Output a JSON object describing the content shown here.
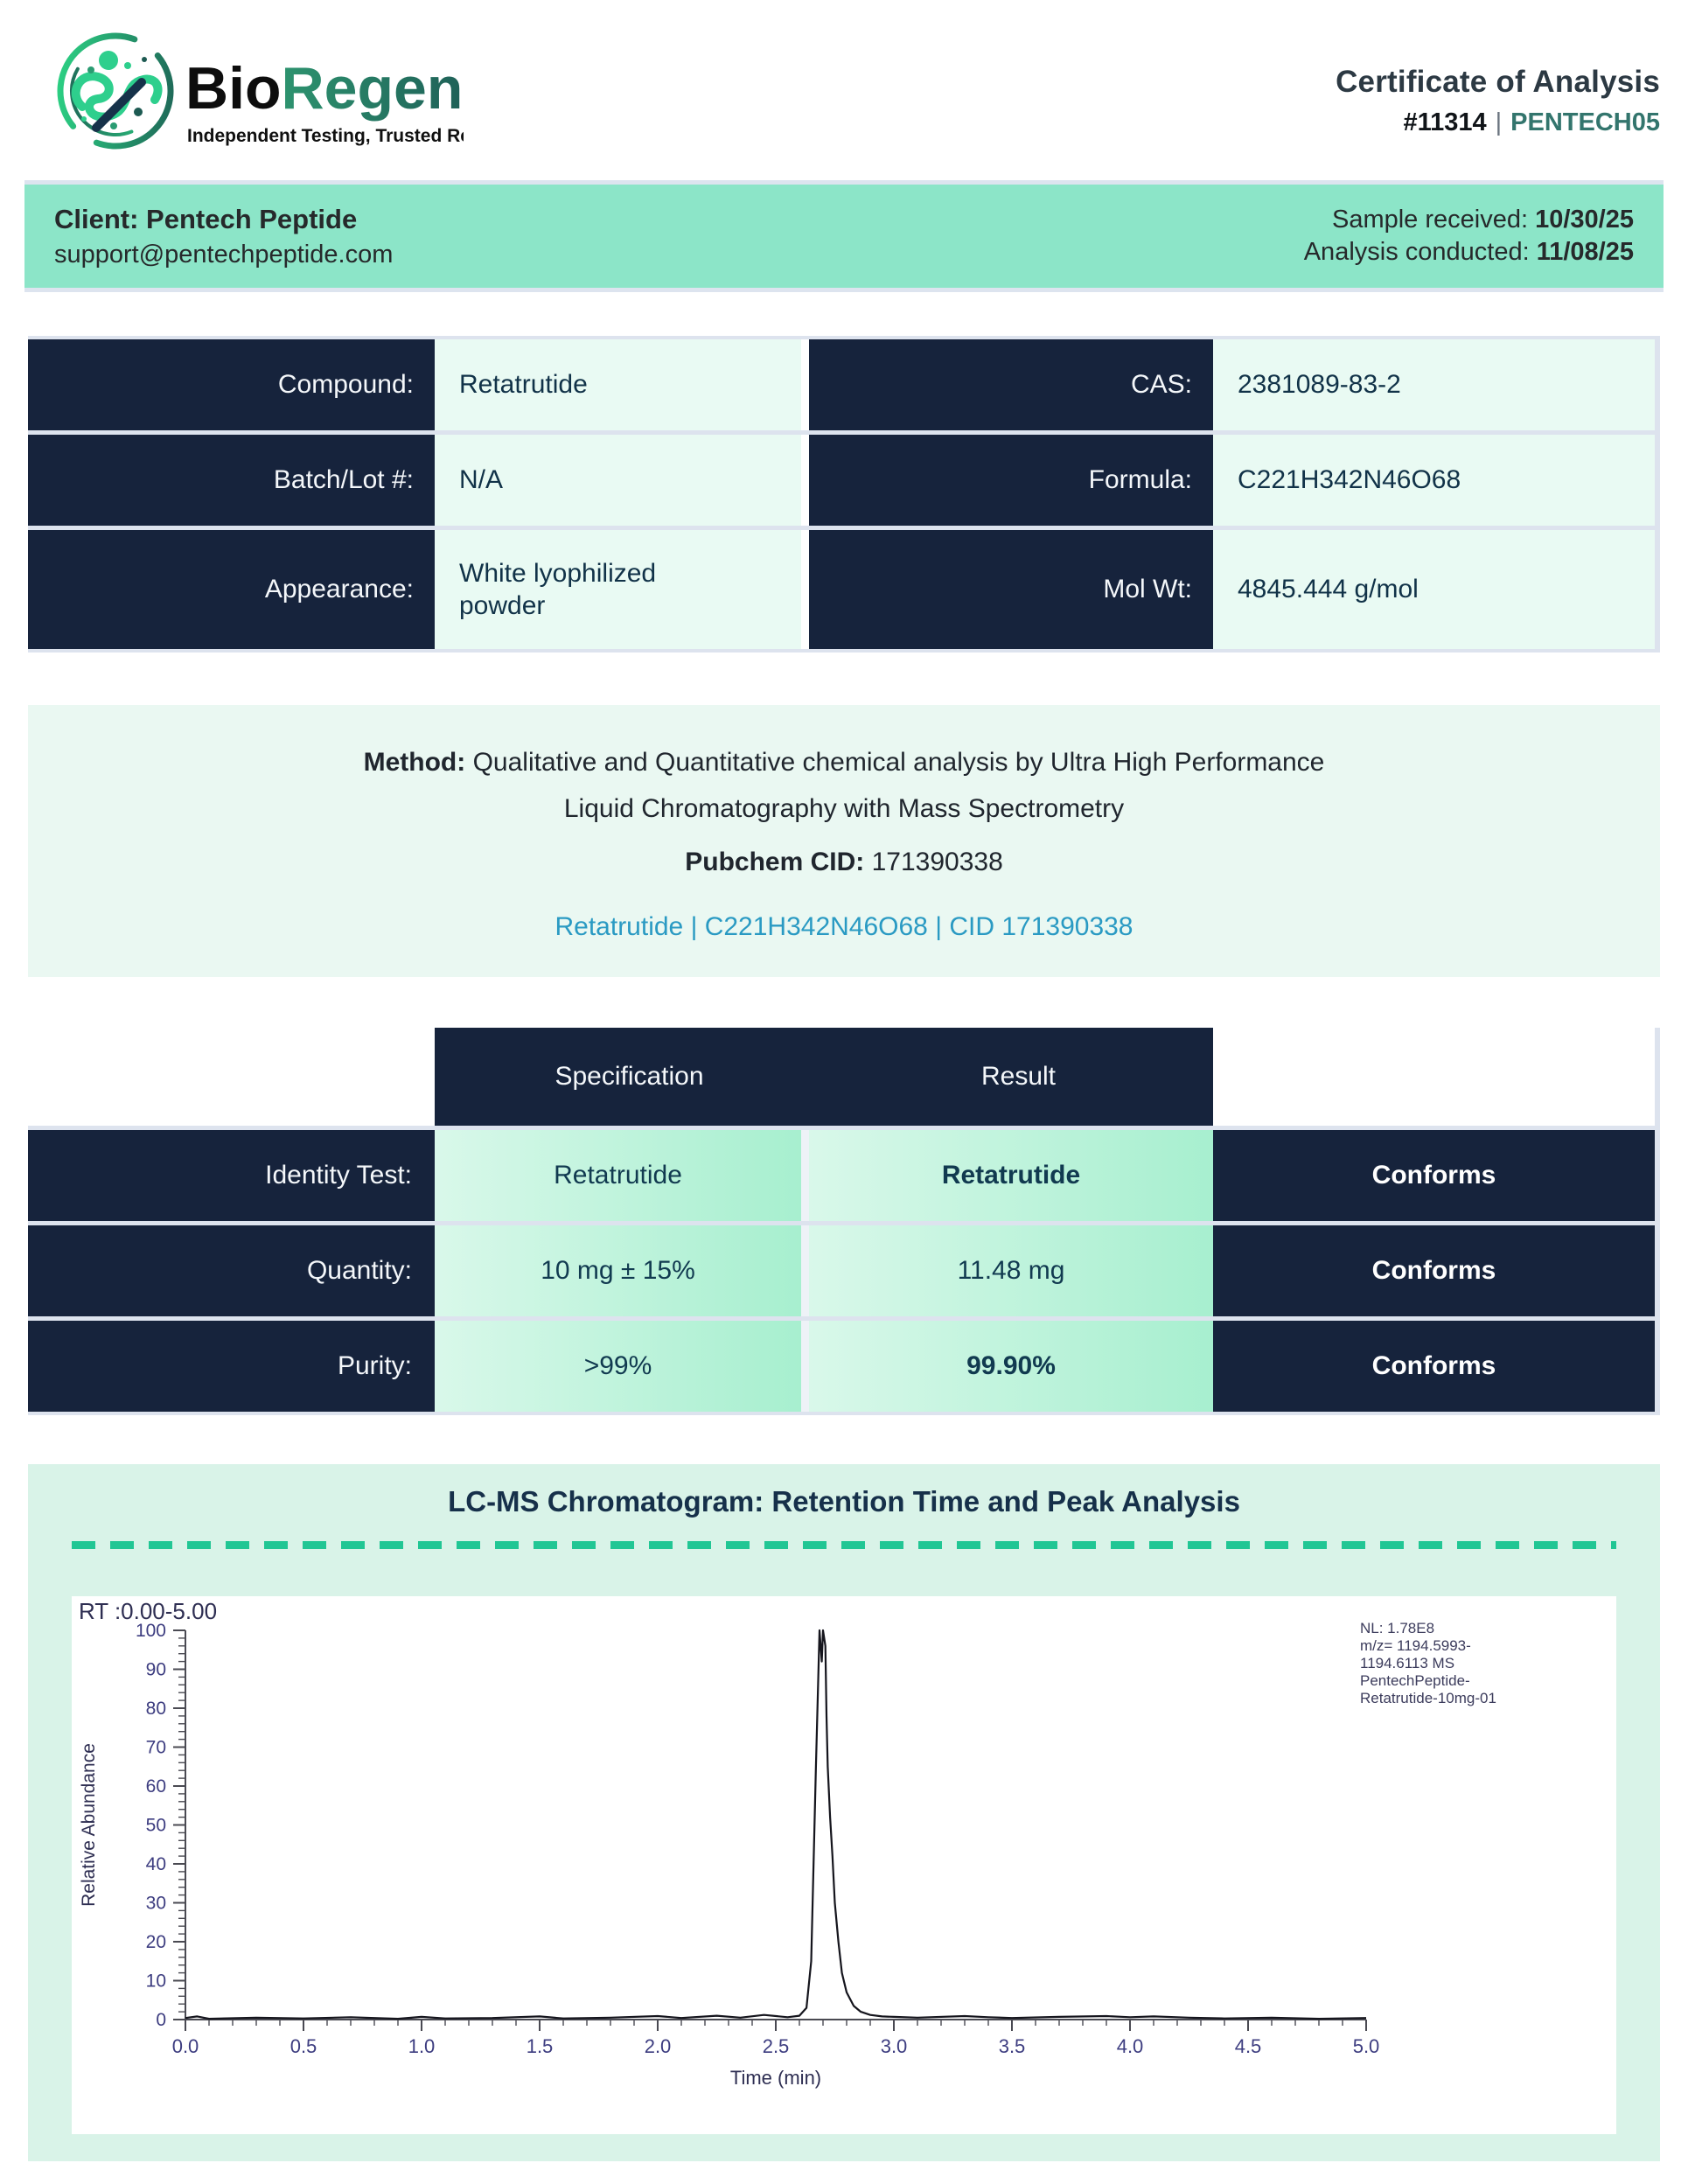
{
  "header": {
    "brand": {
      "name_black": "Bio",
      "name_green": "Regen",
      "tagline": "Independent Testing, Trusted Results"
    },
    "title": "Certificate of Analysis",
    "report_number": "#11314",
    "separator": "|",
    "client_code": "PENTECH05"
  },
  "client_bar": {
    "client_name": "Client: Pentech Peptide",
    "client_email": "support@pentechpeptide.com",
    "sample_received_label": "Sample received: ",
    "sample_received_date": "10/30/25",
    "analysis_conducted_label": "Analysis conducted: ",
    "analysis_conducted_date": "11/08/25"
  },
  "compound_table": {
    "rows": [
      {
        "label": "Compound:",
        "value": "Retatrutide",
        "label2": "CAS:",
        "value2": "2381089-83-2"
      },
      {
        "label": "Batch/Lot #:",
        "value": "N/A",
        "label2": "Formula:",
        "value2": "C221H342N46O68"
      },
      {
        "label": "Appearance:",
        "value": "White lyophilized powder",
        "label2": "Mol Wt:",
        "value2": "4845.444 g/mol"
      }
    ]
  },
  "method": {
    "label": "Method: ",
    "text": "Qualitative and Quantitative chemical analysis by Ultra High Performance Liquid Chromatography with Mass Spectrometry",
    "pubchem_label": "Pubchem CID: ",
    "pubchem_value": "171390338",
    "link_text": "Retatrutide | C221H342N46O68 | CID 171390338"
  },
  "spec_table": {
    "headers": {
      "specification": "Specification",
      "result": "Result"
    },
    "rows": [
      {
        "label": "Identity Test:",
        "spec": "Retatrutide",
        "result": "Retatrutide",
        "status": "Conforms"
      },
      {
        "label": "Quantity:",
        "spec": "10 mg ± 15%",
        "result": "11.48 mg",
        "status": "Conforms"
      },
      {
        "label": "Purity:",
        "spec": ">99%",
        "result": "99.90%",
        "status": "Conforms"
      }
    ]
  },
  "chromatogram_section": {
    "title": "LC-MS Chromatogram: Retention Time and Peak Analysis"
  },
  "chart_data": {
    "type": "line",
    "title": "LC-MS Chromatogram: Retention Time and Peak Analysis",
    "rt_range_label": "RT :0.00-5.00",
    "xlabel": "Time (min)",
    "ylabel": "Relative Abundance",
    "xlim": [
      0,
      5
    ],
    "ylim": [
      0,
      100
    ],
    "x_major_tick_step": 0.5,
    "x_minor_tick_step": 0.1,
    "y_major_tick_step": 10,
    "y_minor_tick_step": 2,
    "peak_retention_time": 2.7,
    "peak_height": 100,
    "annotation_lines": [
      "NL: 1.78E8",
      "m/z= 1194.5993-",
      "1194.6113 MS",
      "PentechPeptide-",
      "Retatrutide-10mg-01"
    ],
    "series": [
      {
        "name": "m/z 1194.5993-1194.6113",
        "points": [
          [
            0.0,
            0.4
          ],
          [
            0.05,
            0.8
          ],
          [
            0.1,
            0.2
          ],
          [
            0.3,
            0.5
          ],
          [
            0.5,
            0.3
          ],
          [
            0.7,
            0.6
          ],
          [
            0.9,
            0.2
          ],
          [
            1.0,
            0.7
          ],
          [
            1.1,
            0.3
          ],
          [
            1.3,
            0.4
          ],
          [
            1.5,
            0.8
          ],
          [
            1.6,
            0.3
          ],
          [
            1.8,
            0.5
          ],
          [
            2.0,
            0.9
          ],
          [
            2.1,
            0.4
          ],
          [
            2.25,
            1.0
          ],
          [
            2.35,
            0.5
          ],
          [
            2.45,
            1.2
          ],
          [
            2.55,
            0.6
          ],
          [
            2.6,
            1.0
          ],
          [
            2.63,
            3
          ],
          [
            2.65,
            15
          ],
          [
            2.66,
            40
          ],
          [
            2.67,
            65
          ],
          [
            2.68,
            88
          ],
          [
            2.685,
            100
          ],
          [
            2.695,
            92
          ],
          [
            2.7,
            100
          ],
          [
            2.71,
            96
          ],
          [
            2.715,
            78
          ],
          [
            2.72,
            65
          ],
          [
            2.73,
            52
          ],
          [
            2.74,
            42
          ],
          [
            2.75,
            30
          ],
          [
            2.765,
            20
          ],
          [
            2.78,
            12
          ],
          [
            2.8,
            7
          ],
          [
            2.83,
            3.5
          ],
          [
            2.86,
            2
          ],
          [
            2.9,
            1.2
          ],
          [
            2.95,
            0.8
          ],
          [
            3.0,
            0.7
          ],
          [
            3.1,
            0.5
          ],
          [
            3.3,
            0.9
          ],
          [
            3.4,
            0.6
          ],
          [
            3.5,
            0.4
          ],
          [
            3.7,
            0.7
          ],
          [
            3.9,
            0.9
          ],
          [
            4.0,
            0.6
          ],
          [
            4.1,
            0.8
          ],
          [
            4.25,
            0.5
          ],
          [
            4.4,
            0.3
          ],
          [
            4.6,
            0.5
          ],
          [
            4.8,
            0.2
          ],
          [
            5.0,
            0.4
          ]
        ]
      }
    ]
  },
  "colors": {
    "navy": "#16233c",
    "mint_bar": "#8ce5c8",
    "pale_cell": "#e9faf3",
    "card_bg": "#d9f3e8",
    "teal_accent": "#33756d",
    "link_blue": "#2a9ac3",
    "dash_green": "#21c694"
  }
}
